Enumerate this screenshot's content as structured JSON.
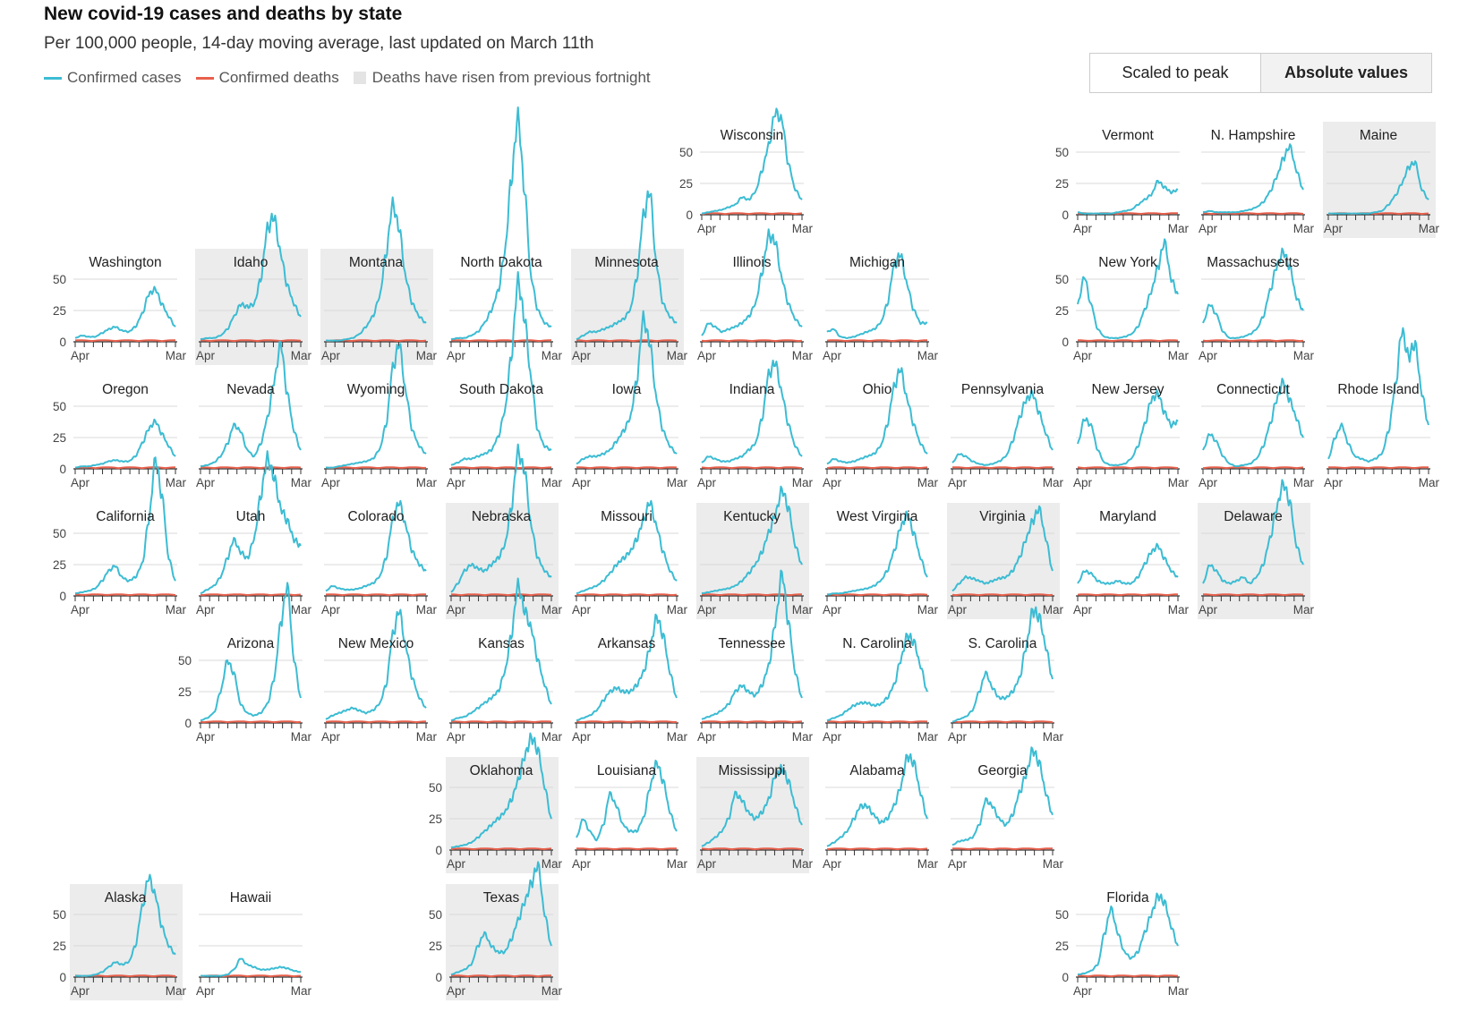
{
  "header": {
    "title": "New covid-19 cases and deaths by state",
    "subtitle": "Per 100,000 people, 14-day moving average, last updated on March 11th"
  },
  "legend": {
    "cases_label": "Confirmed cases",
    "deaths_label": "Confirmed deaths",
    "risen_label": "Deaths have risen from previous fortnight"
  },
  "toggle": {
    "scaled_label": "Scaled to peak",
    "absolute_label": "Absolute values",
    "active": "absolute"
  },
  "colors": {
    "cases": "#3cbcd3",
    "deaths": "#e8604c",
    "risen_bg": "#ececec",
    "grid": "#d9d9d9"
  },
  "chart_data": {
    "type": "line",
    "layout": "small-multiples tile grid map",
    "title": "New covid-19 cases and deaths by state",
    "subtitle": "Per 100,000 people, 14-day moving average, last updated on March 11th",
    "ylim": [
      0,
      50
    ],
    "yticks": [
      0,
      25,
      50
    ],
    "xtick_start": "Apr",
    "xtick_end": "Mar",
    "series_names": [
      "Confirmed cases",
      "Confirmed deaths"
    ],
    "states": [
      {
        "name": "Wisconsin",
        "row": 0,
        "col": 5,
        "risen": false,
        "y_axis": true,
        "cases": [
          1,
          2,
          3,
          4,
          6,
          8,
          14,
          12,
          18,
          35,
          55,
          82,
          75,
          40,
          20,
          12
        ]
      },
      {
        "name": "Vermont",
        "row": 0,
        "col": 8,
        "risen": false,
        "y_axis": true,
        "cases": [
          2,
          1,
          1,
          1,
          1,
          1,
          2,
          3,
          4,
          8,
          12,
          16,
          27,
          22,
          18,
          20
        ]
      },
      {
        "name": "N. Hampshire",
        "row": 0,
        "col": 9,
        "risen": false,
        "y_axis": false,
        "cases": [
          2,
          3,
          2,
          2,
          2,
          2,
          3,
          4,
          6,
          10,
          18,
          30,
          45,
          55,
          35,
          20
        ]
      },
      {
        "name": "Maine",
        "row": 0,
        "col": 10,
        "risen": true,
        "y_axis": false,
        "cases": [
          1,
          1,
          1,
          1,
          1,
          1,
          1,
          2,
          3,
          8,
          15,
          25,
          38,
          42,
          20,
          12
        ]
      },
      {
        "name": "Washington",
        "row": 1,
        "col": 0,
        "risen": false,
        "y_axis": true,
        "cases": [
          3,
          5,
          4,
          4,
          7,
          10,
          12,
          9,
          8,
          12,
          22,
          38,
          42,
          30,
          20,
          12
        ]
      },
      {
        "name": "Idaho",
        "row": 1,
        "col": 1,
        "risen": true,
        "y_axis": false,
        "cases": [
          2,
          3,
          3,
          5,
          10,
          20,
          30,
          28,
          30,
          50,
          90,
          100,
          70,
          45,
          30,
          20
        ]
      },
      {
        "name": "Montana",
        "row": 1,
        "col": 2,
        "risen": true,
        "y_axis": false,
        "cases": [
          1,
          1,
          1,
          2,
          3,
          6,
          12,
          20,
          35,
          70,
          110,
          90,
          50,
          30,
          20,
          15
        ]
      },
      {
        "name": "North Dakota",
        "row": 1,
        "col": 3,
        "risen": false,
        "y_axis": false,
        "cases": [
          2,
          3,
          3,
          5,
          8,
          15,
          25,
          40,
          70,
          130,
          180,
          120,
          50,
          25,
          15,
          12
        ]
      },
      {
        "name": "Minnesota",
        "row": 1,
        "col": 4,
        "risen": true,
        "y_axis": false,
        "cases": [
          2,
          5,
          8,
          8,
          10,
          12,
          15,
          18,
          25,
          50,
          100,
          120,
          60,
          30,
          20,
          15
        ]
      },
      {
        "name": "Illinois",
        "row": 1,
        "col": 5,
        "risen": false,
        "y_axis": false,
        "cases": [
          5,
          15,
          12,
          8,
          10,
          12,
          15,
          20,
          30,
          55,
          85,
          80,
          50,
          30,
          18,
          12
        ]
      },
      {
        "name": "Michigan",
        "row": 1,
        "col": 6,
        "risen": false,
        "y_axis": false,
        "cases": [
          8,
          10,
          4,
          3,
          4,
          6,
          8,
          10,
          15,
          30,
          60,
          70,
          45,
          25,
          15,
          15
        ]
      },
      {
        "name": "New York",
        "row": 1,
        "col": 8,
        "risen": false,
        "y_axis": true,
        "cases": [
          30,
          52,
          30,
          10,
          4,
          3,
          3,
          4,
          6,
          12,
          25,
          40,
          60,
          80,
          50,
          38
        ]
      },
      {
        "name": "Massachusetts",
        "row": 1,
        "col": 9,
        "risen": false,
        "y_axis": false,
        "cases": [
          15,
          30,
          22,
          8,
          3,
          3,
          4,
          6,
          10,
          20,
          40,
          60,
          72,
          60,
          35,
          25
        ]
      },
      {
        "name": "Oregon",
        "row": 2,
        "col": 0,
        "risen": false,
        "y_axis": true,
        "cases": [
          1,
          2,
          2,
          3,
          4,
          6,
          7,
          6,
          6,
          10,
          20,
          32,
          38,
          28,
          18,
          10
        ]
      },
      {
        "name": "Nevada",
        "row": 2,
        "col": 1,
        "risen": false,
        "y_axis": false,
        "cases": [
          2,
          3,
          5,
          10,
          20,
          35,
          30,
          15,
          10,
          20,
          40,
          70,
          100,
          60,
          30,
          15
        ]
      },
      {
        "name": "Wyoming",
        "row": 2,
        "col": 2,
        "risen": false,
        "y_axis": false,
        "cases": [
          1,
          1,
          2,
          3,
          4,
          5,
          6,
          8,
          15,
          35,
          80,
          100,
          60,
          30,
          18,
          12
        ]
      },
      {
        "name": "South Dakota",
        "row": 2,
        "col": 3,
        "risen": false,
        "y_axis": false,
        "cases": [
          3,
          5,
          8,
          8,
          10,
          12,
          15,
          25,
          45,
          90,
          150,
          120,
          70,
          30,
          18,
          15
        ]
      },
      {
        "name": "Iowa",
        "row": 2,
        "col": 4,
        "risen": false,
        "y_axis": false,
        "cases": [
          4,
          8,
          10,
          10,
          12,
          15,
          22,
          30,
          40,
          70,
          120,
          100,
          55,
          30,
          18,
          12
        ]
      },
      {
        "name": "Indiana",
        "row": 2,
        "col": 5,
        "risen": false,
        "y_axis": false,
        "cases": [
          5,
          10,
          8,
          6,
          6,
          8,
          10,
          15,
          20,
          40,
          75,
          85,
          60,
          35,
          18,
          10
        ]
      },
      {
        "name": "Ohio",
        "row": 2,
        "col": 6,
        "risen": false,
        "y_axis": false,
        "cases": [
          4,
          8,
          6,
          5,
          6,
          8,
          10,
          12,
          18,
          35,
          65,
          80,
          55,
          35,
          20,
          12
        ]
      },
      {
        "name": "Pennsylvania",
        "row": 2,
        "col": 7,
        "risen": false,
        "y_axis": false,
        "cases": [
          5,
          12,
          10,
          6,
          4,
          3,
          4,
          6,
          10,
          22,
          40,
          55,
          60,
          45,
          28,
          15
        ]
      },
      {
        "name": "New Jersey",
        "row": 2,
        "col": 8,
        "risen": false,
        "y_axis": false,
        "cases": [
          20,
          40,
          35,
          15,
          5,
          3,
          3,
          4,
          8,
          18,
          35,
          55,
          60,
          45,
          35,
          38
        ]
      },
      {
        "name": "Connecticut",
        "row": 2,
        "col": 9,
        "risen": false,
        "y_axis": false,
        "cases": [
          15,
          28,
          22,
          10,
          4,
          2,
          3,
          4,
          8,
          18,
          35,
          55,
          70,
          55,
          40,
          25
        ]
      },
      {
        "name": "Rhode Island",
        "row": 2,
        "col": 10,
        "risen": false,
        "y_axis": false,
        "cases": [
          8,
          25,
          35,
          20,
          10,
          8,
          6,
          8,
          12,
          30,
          65,
          110,
          90,
          100,
          60,
          35
        ]
      },
      {
        "name": "California",
        "row": 3,
        "col": 0,
        "risen": false,
        "y_axis": true,
        "cases": [
          2,
          3,
          4,
          6,
          12,
          20,
          24,
          15,
          12,
          15,
          25,
          60,
          110,
          80,
          30,
          12
        ]
      },
      {
        "name": "Utah",
        "row": 3,
        "col": 1,
        "risen": false,
        "y_axis": false,
        "cases": [
          2,
          5,
          8,
          15,
          30,
          45,
          35,
          30,
          45,
          80,
          110,
          95,
          70,
          60,
          45,
          40
        ]
      },
      {
        "name": "Colorado",
        "row": 3,
        "col": 2,
        "risen": false,
        "y_axis": false,
        "cases": [
          4,
          8,
          6,
          5,
          5,
          6,
          8,
          10,
          15,
          30,
          60,
          75,
          55,
          35,
          25,
          20
        ]
      },
      {
        "name": "Nebraska",
        "row": 3,
        "col": 3,
        "risen": true,
        "y_axis": false,
        "cases": [
          3,
          10,
          20,
          25,
          22,
          20,
          25,
          30,
          40,
          70,
          115,
          100,
          55,
          30,
          20,
          15
        ]
      },
      {
        "name": "Missouri",
        "row": 3,
        "col": 4,
        "risen": false,
        "y_axis": false,
        "cases": [
          2,
          4,
          6,
          8,
          12,
          18,
          25,
          30,
          35,
          45,
          60,
          75,
          55,
          35,
          20,
          12
        ]
      },
      {
        "name": "Kentucky",
        "row": 3,
        "col": 5,
        "risen": true,
        "y_axis": false,
        "cases": [
          2,
          3,
          4,
          5,
          6,
          8,
          12,
          18,
          25,
          35,
          50,
          65,
          85,
          70,
          40,
          25
        ]
      },
      {
        "name": "West Virginia",
        "row": 3,
        "col": 6,
        "risen": false,
        "y_axis": false,
        "cases": [
          1,
          2,
          2,
          3,
          4,
          5,
          6,
          8,
          12,
          20,
          35,
          55,
          65,
          50,
          30,
          15
        ]
      },
      {
        "name": "Virginia",
        "row": 3,
        "col": 7,
        "risen": true,
        "y_axis": false,
        "cases": [
          4,
          10,
          15,
          14,
          12,
          10,
          12,
          14,
          15,
          20,
          30,
          45,
          60,
          70,
          45,
          20
        ]
      },
      {
        "name": "Maryland",
        "row": 3,
        "col": 8,
        "risen": false,
        "y_axis": false,
        "cases": [
          10,
          20,
          18,
          12,
          10,
          10,
          12,
          10,
          10,
          15,
          25,
          35,
          40,
          30,
          20,
          15
        ]
      },
      {
        "name": "Delaware",
        "row": 3,
        "col": 9,
        "risen": true,
        "y_axis": false,
        "cases": [
          10,
          25,
          20,
          12,
          10,
          12,
          15,
          10,
          15,
          25,
          45,
          70,
          90,
          75,
          40,
          25
        ]
      },
      {
        "name": "Arizona",
        "row": 4,
        "col": 1,
        "risen": false,
        "y_axis": true,
        "cases": [
          2,
          4,
          8,
          25,
          50,
          40,
          15,
          8,
          6,
          8,
          15,
          35,
          80,
          110,
          50,
          20
        ]
      },
      {
        "name": "New Mexico",
        "row": 4,
        "col": 2,
        "risen": false,
        "y_axis": false,
        "cases": [
          3,
          6,
          8,
          10,
          12,
          10,
          8,
          10,
          15,
          30,
          70,
          90,
          60,
          35,
          20,
          12
        ]
      },
      {
        "name": "Kansas",
        "row": 4,
        "col": 3,
        "risen": false,
        "y_axis": false,
        "cases": [
          2,
          4,
          5,
          8,
          12,
          16,
          20,
          25,
          40,
          70,
          110,
          90,
          75,
          50,
          30,
          15
        ]
      },
      {
        "name": "Arkansas",
        "row": 4,
        "col": 4,
        "risen": false,
        "y_axis": false,
        "cases": [
          2,
          4,
          6,
          10,
          18,
          25,
          28,
          25,
          25,
          30,
          40,
          60,
          85,
          70,
          40,
          20
        ]
      },
      {
        "name": "Tennessee",
        "row": 4,
        "col": 5,
        "risen": false,
        "y_axis": false,
        "cases": [
          3,
          5,
          7,
          10,
          15,
          25,
          30,
          25,
          22,
          30,
          45,
          80,
          120,
          80,
          40,
          20
        ]
      },
      {
        "name": "N. Carolina",
        "row": 4,
        "col": 6,
        "risen": false,
        "y_axis": false,
        "cases": [
          2,
          4,
          6,
          10,
          14,
          16,
          16,
          14,
          15,
          20,
          30,
          50,
          70,
          65,
          45,
          25
        ]
      },
      {
        "name": "S. Carolina",
        "row": 4,
        "col": 7,
        "risen": false,
        "y_axis": false,
        "cases": [
          1,
          3,
          5,
          10,
          25,
          40,
          28,
          20,
          20,
          25,
          35,
          60,
          90,
          85,
          60,
          35
        ]
      },
      {
        "name": "Oklahoma",
        "row": 5,
        "col": 3,
        "risen": true,
        "y_axis": true,
        "cases": [
          2,
          3,
          4,
          6,
          10,
          15,
          20,
          25,
          30,
          40,
          55,
          75,
          90,
          80,
          50,
          25
        ]
      },
      {
        "name": "Louisiana",
        "row": 5,
        "col": 4,
        "risen": false,
        "y_axis": false,
        "cases": [
          10,
          25,
          15,
          8,
          20,
          45,
          35,
          20,
          15,
          15,
          25,
          50,
          70,
          55,
          30,
          15
        ]
      },
      {
        "name": "Mississippi",
        "row": 5,
        "col": 5,
        "risen": true,
        "y_axis": false,
        "cases": [
          3,
          6,
          10,
          15,
          25,
          45,
          40,
          30,
          25,
          30,
          40,
          60,
          65,
          55,
          35,
          20
        ]
      },
      {
        "name": "Alabama",
        "row": 5,
        "col": 6,
        "risen": false,
        "y_axis": false,
        "cases": [
          3,
          6,
          10,
          15,
          25,
          35,
          35,
          28,
          22,
          25,
          35,
          50,
          75,
          70,
          45,
          25
        ]
      },
      {
        "name": "Georgia",
        "row": 5,
        "col": 7,
        "risen": false,
        "y_axis": false,
        "cases": [
          4,
          7,
          8,
          10,
          20,
          40,
          35,
          25,
          20,
          28,
          45,
          60,
          80,
          70,
          45,
          28
        ]
      },
      {
        "name": "Alaska",
        "row": 6,
        "col": 0,
        "risen": true,
        "y_axis": true,
        "cases": [
          1,
          1,
          1,
          2,
          4,
          8,
          12,
          10,
          12,
          25,
          55,
          80,
          65,
          40,
          25,
          18
        ]
      },
      {
        "name": "Hawaii",
        "row": 6,
        "col": 1,
        "risen": false,
        "y_axis": false,
        "cases": [
          1,
          1,
          1,
          1,
          2,
          6,
          15,
          10,
          8,
          6,
          6,
          7,
          8,
          7,
          5,
          4
        ]
      },
      {
        "name": "Texas",
        "row": 6,
        "col": 3,
        "risen": true,
        "y_axis": true,
        "cases": [
          2,
          4,
          6,
          10,
          25,
          35,
          25,
          20,
          20,
          30,
          45,
          60,
          75,
          90,
          50,
          25
        ]
      },
      {
        "name": "Florida",
        "row": 6,
        "col": 8,
        "risen": false,
        "y_axis": true,
        "cases": [
          2,
          3,
          5,
          10,
          35,
          55,
          35,
          20,
          15,
          20,
          35,
          50,
          65,
          60,
          40,
          25
        ]
      }
    ]
  }
}
